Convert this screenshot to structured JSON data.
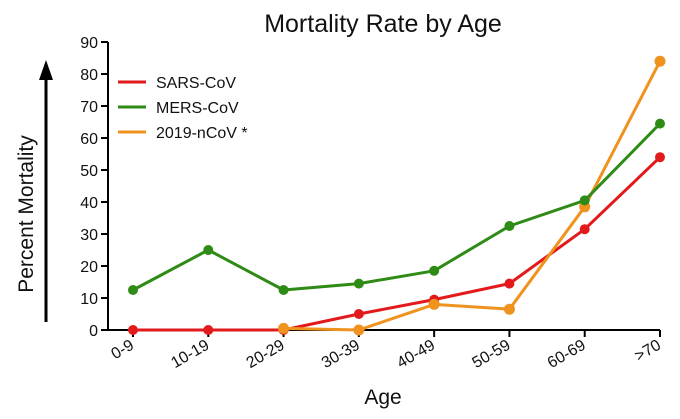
{
  "chart_data": {
    "type": "line",
    "title": "Mortality Rate by Age",
    "xlabel": "Age",
    "ylabel": "Percent Mortality",
    "categories": [
      "0-9",
      "10-19",
      "20-29",
      "30-39",
      "40-49",
      "50-59",
      "60-69",
      ">70"
    ],
    "ylim": [
      0,
      90
    ],
    "yticks": [
      0,
      10,
      20,
      30,
      40,
      50,
      60,
      70,
      80,
      90
    ],
    "legend_position": "top-left",
    "series": [
      {
        "name": "SARS-CoV",
        "color": "#e31a1c",
        "values": [
          0,
          0,
          0,
          5,
          9.5,
          14.5,
          31.5,
          54
        ]
      },
      {
        "name": "MERS-CoV",
        "color": "#2e8b16",
        "values": [
          12.5,
          25,
          12.5,
          14.5,
          18.5,
          32.5,
          40.5,
          64.5
        ]
      },
      {
        "name": "2019-nCoV *",
        "color": "#f0921e",
        "values": [
          null,
          null,
          0.5,
          0,
          8,
          6.5,
          38.5,
          84
        ]
      }
    ]
  }
}
